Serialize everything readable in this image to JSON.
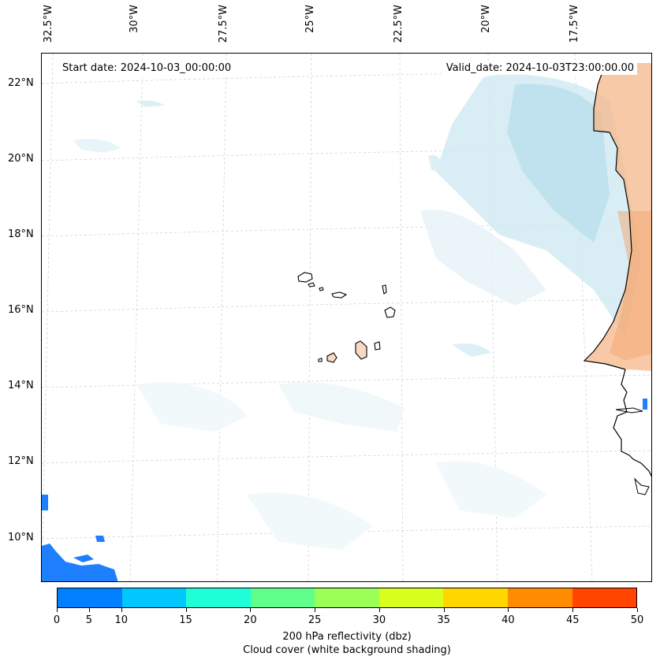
{
  "map": {
    "start_date": "Start date: 2024-10-03_00:00:00",
    "valid_date": "Valid_date: 2024-10-03T23:00:00.00",
    "lat_labels": [
      "22°N",
      "20°N",
      "18°N",
      "16°N",
      "14°N",
      "12°N",
      "10°N"
    ],
    "lon_labels": [
      "32.5°W",
      "30°W",
      "27.5°W",
      "25°W",
      "22.5°W",
      "20°W",
      "17.5°W"
    ]
  },
  "colorbar": {
    "ticks": [
      "0",
      "5",
      "10",
      "15",
      "20",
      "25",
      "30",
      "35",
      "40",
      "45",
      "50"
    ],
    "colors": [
      "#0080ff",
      "#00c8ff",
      "#1effd8",
      "#5fff8a",
      "#9bff55",
      "#d8ff1e",
      "#ffd700",
      "#ff8c00",
      "#ff4500"
    ],
    "title_line1": "200 hPa reflectivity (dbz)",
    "title_line2": "Cloud cover (white background shading)"
  }
}
